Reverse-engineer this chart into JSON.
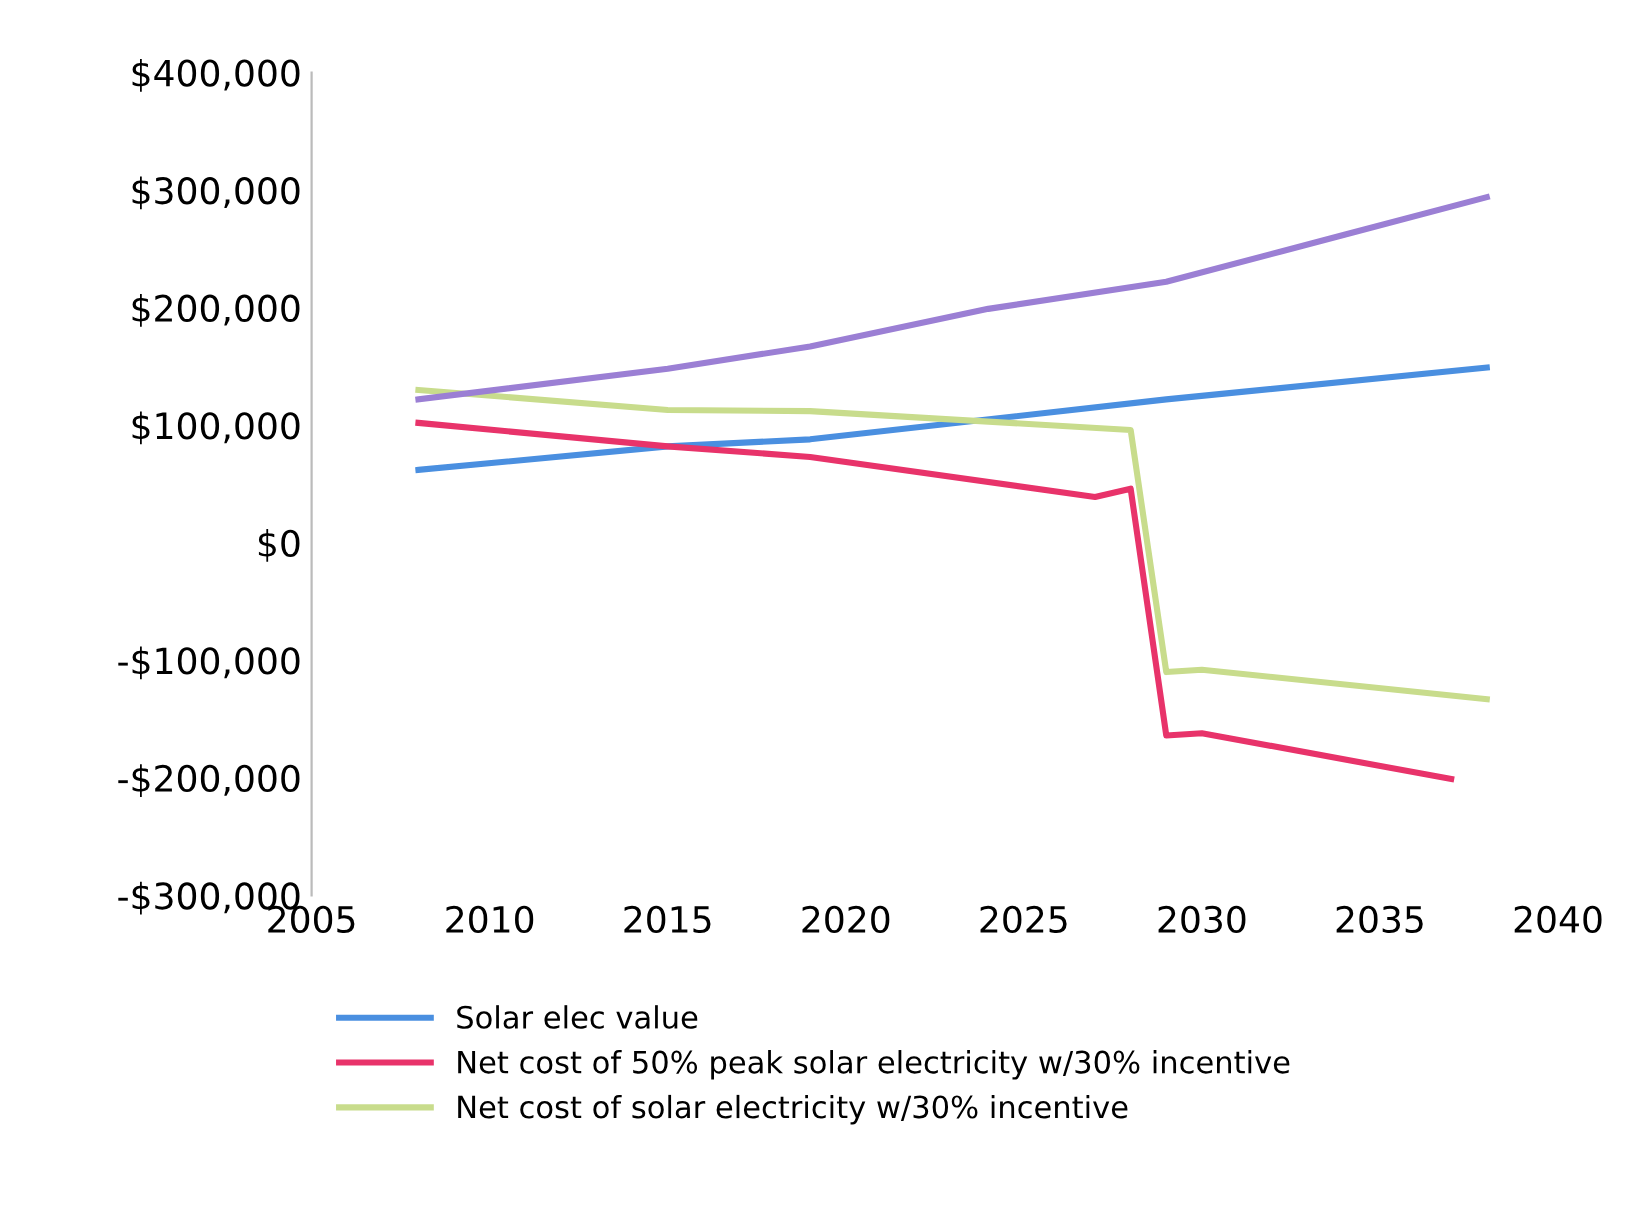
{
  "chart_data": {
    "type": "line",
    "xlim": [
      2005,
      2040
    ],
    "xticks": [
      2005,
      2010,
      2015,
      2020,
      2025,
      2030,
      2035,
      2040
    ],
    "ylim": [
      -300000,
      400000
    ],
    "yticks": [
      {
        "value": -300000,
        "label": "-$300,000"
      },
      {
        "value": -200000,
        "label": "-$200,000"
      },
      {
        "value": -100000,
        "label": "-$100,000"
      },
      {
        "value": 0,
        "label": "$0"
      },
      {
        "value": 100000,
        "label": "$100,000"
      },
      {
        "value": 200000,
        "label": "$200,000"
      },
      {
        "value": 300000,
        "label": "$300,000"
      },
      {
        "value": 400000,
        "label": "$400,000"
      }
    ],
    "grid": false,
    "legend": "bottom",
    "marker": "none",
    "line_style": "solid",
    "series": [
      {
        "name": "Solar elec value",
        "color": "#4a8fe0",
        "x": [
          2008,
          2015,
          2019,
          2029,
          2038
        ],
        "values": [
          62000,
          82000,
          88000,
          122000,
          149000
        ]
      },
      {
        "name": "Net cost of 50% peak solar electricity w/30% incentive",
        "color": "#e8336a",
        "x": [
          2008,
          2015,
          2019,
          2027,
          2028,
          2029,
          2030,
          2037
        ],
        "values": [
          102000,
          82000,
          73000,
          39000,
          46000,
          -164000,
          -162000,
          -201000
        ]
      },
      {
        "name": "Net cost of solar electricity w/30% incentive",
        "color": "#c8dc8c",
        "x": [
          2008,
          2015,
          2019,
          2028,
          2029,
          2030,
          2038
        ],
        "values": [
          130000,
          113000,
          112000,
          96000,
          -110000,
          -108000,
          -133000
        ]
      },
      {
        "color": "#9b7fd4",
        "x": [
          2008,
          2015,
          2019,
          2024,
          2029,
          2034,
          2038
        ],
        "values": [
          122000,
          148000,
          167000,
          199000,
          222000,
          262000,
          294000
        ]
      }
    ]
  }
}
